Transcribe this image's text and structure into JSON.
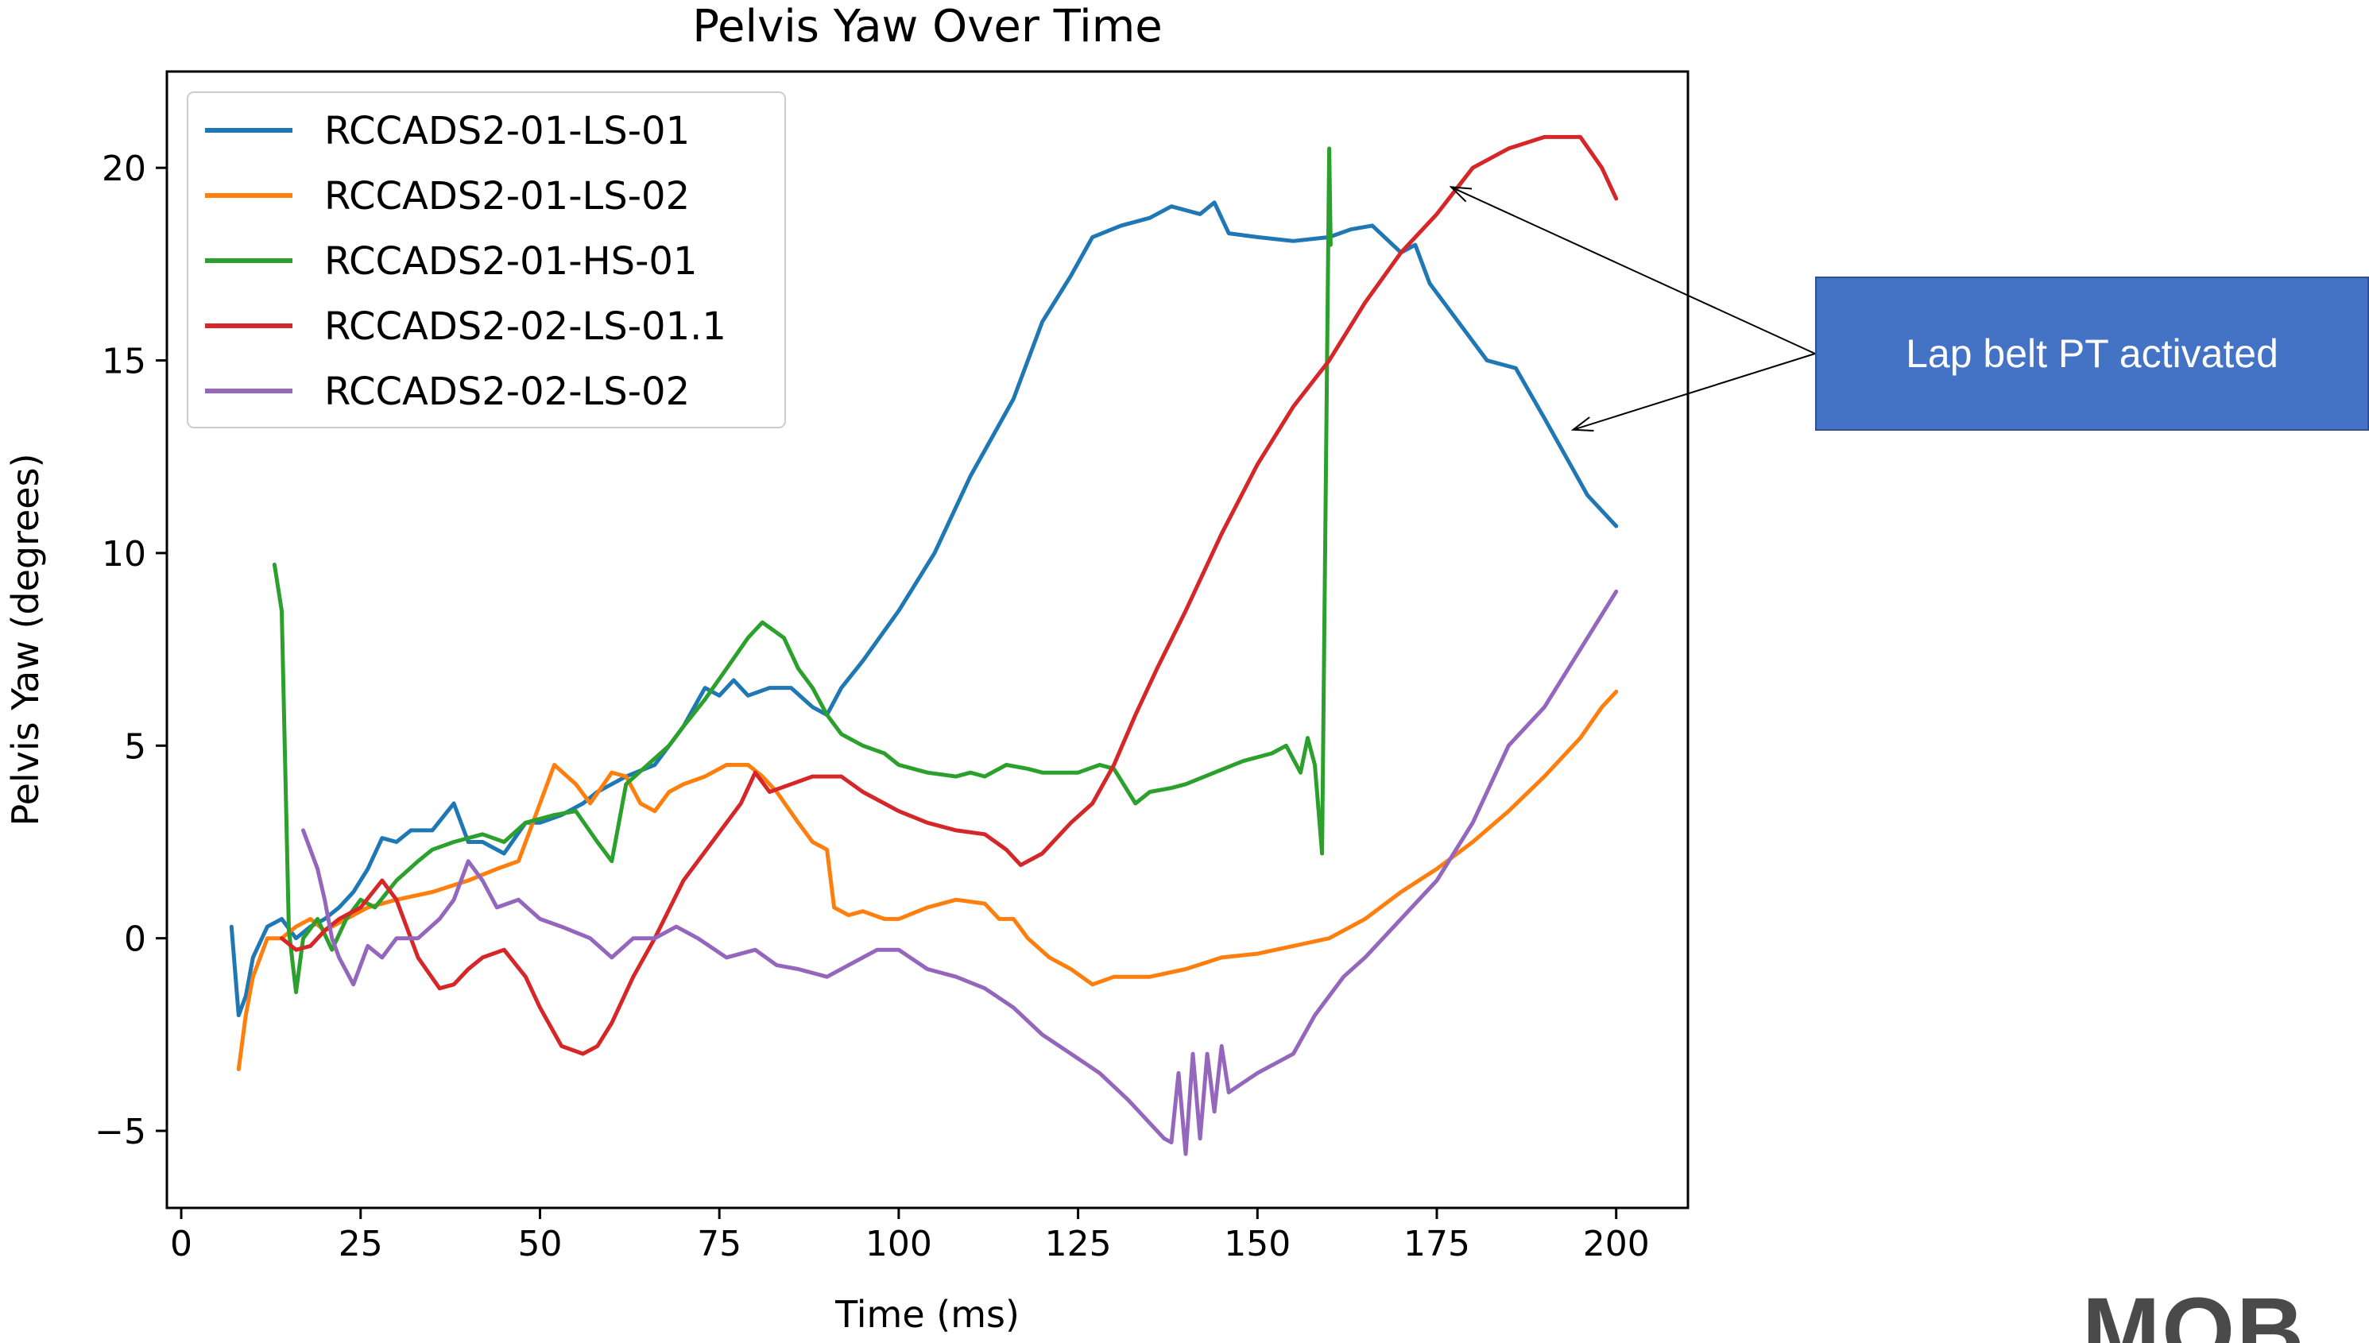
{
  "chart_data": {
    "type": "line",
    "title": "Pelvis Yaw Over Time",
    "xlabel": "Time (ms)",
    "ylabel": "Pelvis Yaw (degrees)",
    "xlim": [
      -2,
      210
    ],
    "ylim": [
      -7,
      22.5
    ],
    "xticks": [
      0,
      25,
      50,
      75,
      100,
      125,
      150,
      175,
      200
    ],
    "yticks": [
      -5,
      0,
      5,
      10,
      15,
      20
    ],
    "ytick_labels": [
      "−5",
      "0",
      "5",
      "10",
      "15",
      "20"
    ],
    "legend_position": "top-left",
    "grid": false,
    "series": [
      {
        "name": "RCCADS2-01-LS-01",
        "color": "#1f77b4",
        "points": [
          [
            7,
            0.3
          ],
          [
            8,
            -2
          ],
          [
            9,
            -1.5
          ],
          [
            10,
            -0.5
          ],
          [
            12,
            0.3
          ],
          [
            14,
            0.5
          ],
          [
            16,
            0
          ],
          [
            18,
            0.3
          ],
          [
            20,
            0.5
          ],
          [
            22,
            0.8
          ],
          [
            24,
            1.2
          ],
          [
            26,
            1.8
          ],
          [
            28,
            2.6
          ],
          [
            30,
            2.5
          ],
          [
            32,
            2.8
          ],
          [
            35,
            2.8
          ],
          [
            38,
            3.5
          ],
          [
            40,
            2.5
          ],
          [
            42,
            2.5
          ],
          [
            45,
            2.2
          ],
          [
            48,
            3
          ],
          [
            50,
            3
          ],
          [
            53,
            3.2
          ],
          [
            56,
            3.5
          ],
          [
            58,
            3.8
          ],
          [
            62,
            4.2
          ],
          [
            66,
            4.5
          ],
          [
            70,
            5.5
          ],
          [
            73,
            6.5
          ],
          [
            75,
            6.3
          ],
          [
            77,
            6.7
          ],
          [
            79,
            6.3
          ],
          [
            82,
            6.5
          ],
          [
            85,
            6.5
          ],
          [
            88,
            6
          ],
          [
            90,
            5.8
          ],
          [
            92,
            6.5
          ],
          [
            95,
            7.2
          ],
          [
            100,
            8.5
          ],
          [
            105,
            10
          ],
          [
            110,
            12
          ],
          [
            113,
            13
          ],
          [
            116,
            14
          ],
          [
            120,
            16
          ],
          [
            124,
            17.2
          ],
          [
            127,
            18.2
          ],
          [
            131,
            18.5
          ],
          [
            135,
            18.7
          ],
          [
            138,
            19
          ],
          [
            142,
            18.8
          ],
          [
            144,
            19.1
          ],
          [
            146,
            18.3
          ],
          [
            150,
            18.2
          ],
          [
            155,
            18.1
          ],
          [
            160,
            18.2
          ],
          [
            163,
            18.4
          ],
          [
            166,
            18.5
          ],
          [
            170,
            17.8
          ],
          [
            172,
            18
          ],
          [
            174,
            17
          ],
          [
            176,
            16.5
          ],
          [
            178,
            16
          ],
          [
            182,
            15
          ],
          [
            186,
            14.8
          ],
          [
            190,
            13.5
          ],
          [
            193,
            12.5
          ],
          [
            196,
            11.5
          ],
          [
            200,
            10.7
          ]
        ]
      },
      {
        "name": "RCCADS2-01-LS-02",
        "color": "#ff7f0e",
        "points": [
          [
            8,
            -3.4
          ],
          [
            9,
            -2
          ],
          [
            10,
            -1
          ],
          [
            11,
            -0.5
          ],
          [
            12,
            0
          ],
          [
            14,
            0
          ],
          [
            16,
            0.3
          ],
          [
            18,
            0.5
          ],
          [
            20,
            0.2
          ],
          [
            23,
            0.5
          ],
          [
            26,
            0.8
          ],
          [
            30,
            1
          ],
          [
            35,
            1.2
          ],
          [
            40,
            1.5
          ],
          [
            44,
            1.8
          ],
          [
            47,
            2
          ],
          [
            50,
            3.5
          ],
          [
            52,
            4.5
          ],
          [
            55,
            4
          ],
          [
            57,
            3.5
          ],
          [
            60,
            4.3
          ],
          [
            62,
            4.2
          ],
          [
            64,
            3.5
          ],
          [
            66,
            3.3
          ],
          [
            68,
            3.8
          ],
          [
            70,
            4
          ],
          [
            73,
            4.2
          ],
          [
            76,
            4.5
          ],
          [
            79,
            4.5
          ],
          [
            81,
            4.2
          ],
          [
            83,
            3.8
          ],
          [
            86,
            3
          ],
          [
            88,
            2.5
          ],
          [
            90,
            2.3
          ],
          [
            91,
            0.8
          ],
          [
            93,
            0.6
          ],
          [
            95,
            0.7
          ],
          [
            98,
            0.5
          ],
          [
            100,
            0.5
          ],
          [
            104,
            0.8
          ],
          [
            108,
            1
          ],
          [
            112,
            0.9
          ],
          [
            114,
            0.5
          ],
          [
            116,
            0.5
          ],
          [
            118,
            0
          ],
          [
            121,
            -0.5
          ],
          [
            124,
            -0.8
          ],
          [
            127,
            -1.2
          ],
          [
            130,
            -1
          ],
          [
            135,
            -1
          ],
          [
            140,
            -0.8
          ],
          [
            145,
            -0.5
          ],
          [
            150,
            -0.4
          ],
          [
            155,
            -0.2
          ],
          [
            160,
            0
          ],
          [
            165,
            0.5
          ],
          [
            170,
            1.2
          ],
          [
            175,
            1.8
          ],
          [
            180,
            2.5
          ],
          [
            185,
            3.3
          ],
          [
            190,
            4.2
          ],
          [
            195,
            5.2
          ],
          [
            198,
            6
          ],
          [
            200,
            6.4
          ]
        ]
      },
      {
        "name": "RCCADS2-01-HS-01",
        "color": "#2ca02c",
        "points": [
          [
            13,
            9.7
          ],
          [
            14,
            8.5
          ],
          [
            15,
            0.2
          ],
          [
            16,
            -1.4
          ],
          [
            17,
            0
          ],
          [
            19,
            0.5
          ],
          [
            21,
            -0.3
          ],
          [
            23,
            0.5
          ],
          [
            25,
            1
          ],
          [
            27,
            0.8
          ],
          [
            30,
            1.5
          ],
          [
            33,
            2
          ],
          [
            35,
            2.3
          ],
          [
            38,
            2.5
          ],
          [
            42,
            2.7
          ],
          [
            45,
            2.5
          ],
          [
            48,
            3
          ],
          [
            52,
            3.2
          ],
          [
            55,
            3.3
          ],
          [
            58,
            2.5
          ],
          [
            60,
            2
          ],
          [
            62,
            4
          ],
          [
            65,
            4.5
          ],
          [
            68,
            5
          ],
          [
            70,
            5.5
          ],
          [
            73,
            6.2
          ],
          [
            76,
            7
          ],
          [
            79,
            7.8
          ],
          [
            81,
            8.2
          ],
          [
            84,
            7.8
          ],
          [
            86,
            7
          ],
          [
            88,
            6.5
          ],
          [
            90,
            5.8
          ],
          [
            92,
            5.3
          ],
          [
            95,
            5
          ],
          [
            98,
            4.8
          ],
          [
            100,
            4.5
          ],
          [
            104,
            4.3
          ],
          [
            108,
            4.2
          ],
          [
            110,
            4.3
          ],
          [
            112,
            4.2
          ],
          [
            115,
            4.5
          ],
          [
            118,
            4.4
          ],
          [
            120,
            4.3
          ],
          [
            125,
            4.3
          ],
          [
            128,
            4.5
          ],
          [
            130,
            4.4
          ],
          [
            133,
            3.5
          ],
          [
            135,
            3.8
          ],
          [
            138,
            3.9
          ],
          [
            140,
            4
          ],
          [
            144,
            4.3
          ],
          [
            148,
            4.6
          ],
          [
            152,
            4.8
          ],
          [
            154,
            5
          ],
          [
            156,
            4.3
          ],
          [
            157,
            5.2
          ],
          [
            158,
            4.5
          ],
          [
            159,
            2.2
          ],
          [
            160,
            20.5
          ],
          [
            160.2,
            18
          ]
        ]
      },
      {
        "name": "RCCADS2-02-LS-01.1",
        "color": "#d62728",
        "points": [
          [
            14,
            0
          ],
          [
            16,
            -0.3
          ],
          [
            18,
            -0.2
          ],
          [
            20,
            0.2
          ],
          [
            22,
            0.5
          ],
          [
            25,
            0.8
          ],
          [
            28,
            1.5
          ],
          [
            30,
            1
          ],
          [
            33,
            -0.5
          ],
          [
            36,
            -1.3
          ],
          [
            38,
            -1.2
          ],
          [
            40,
            -0.8
          ],
          [
            42,
            -0.5
          ],
          [
            45,
            -0.3
          ],
          [
            48,
            -1
          ],
          [
            50,
            -1.8
          ],
          [
            53,
            -2.8
          ],
          [
            56,
            -3
          ],
          [
            58,
            -2.8
          ],
          [
            60,
            -2.2
          ],
          [
            63,
            -1
          ],
          [
            66,
            0
          ],
          [
            70,
            1.5
          ],
          [
            74,
            2.5
          ],
          [
            78,
            3.5
          ],
          [
            80,
            4.3
          ],
          [
            82,
            3.8
          ],
          [
            85,
            4
          ],
          [
            88,
            4.2
          ],
          [
            92,
            4.2
          ],
          [
            95,
            3.8
          ],
          [
            98,
            3.5
          ],
          [
            100,
            3.3
          ],
          [
            104,
            3
          ],
          [
            108,
            2.8
          ],
          [
            112,
            2.7
          ],
          [
            115,
            2.3
          ],
          [
            117,
            1.9
          ],
          [
            120,
            2.2
          ],
          [
            124,
            3
          ],
          [
            127,
            3.5
          ],
          [
            130,
            4.5
          ],
          [
            133,
            5.8
          ],
          [
            136,
            7
          ],
          [
            140,
            8.5
          ],
          [
            145,
            10.5
          ],
          [
            150,
            12.3
          ],
          [
            155,
            13.8
          ],
          [
            160,
            15
          ],
          [
            165,
            16.5
          ],
          [
            170,
            17.8
          ],
          [
            175,
            18.8
          ],
          [
            180,
            20
          ],
          [
            185,
            20.5
          ],
          [
            190,
            20.8
          ],
          [
            195,
            20.8
          ],
          [
            198,
            20
          ],
          [
            200,
            19.2
          ]
        ]
      },
      {
        "name": "RCCADS2-02-LS-02",
        "color": "#9467bd",
        "points": [
          [
            17,
            2.8
          ],
          [
            19,
            1.8
          ],
          [
            20,
            1
          ],
          [
            21,
            0
          ],
          [
            22,
            -0.5
          ],
          [
            24,
            -1.2
          ],
          [
            26,
            -0.2
          ],
          [
            28,
            -0.5
          ],
          [
            30,
            0
          ],
          [
            33,
            0
          ],
          [
            36,
            0.5
          ],
          [
            38,
            1
          ],
          [
            40,
            2
          ],
          [
            42,
            1.5
          ],
          [
            44,
            0.8
          ],
          [
            47,
            1
          ],
          [
            50,
            0.5
          ],
          [
            53,
            0.3
          ],
          [
            57,
            0
          ],
          [
            60,
            -0.5
          ],
          [
            63,
            0
          ],
          [
            66,
            0
          ],
          [
            69,
            0.3
          ],
          [
            72,
            0
          ],
          [
            76,
            -0.5
          ],
          [
            80,
            -0.3
          ],
          [
            83,
            -0.7
          ],
          [
            86,
            -0.8
          ],
          [
            90,
            -1
          ],
          [
            93,
            -0.7
          ],
          [
            97,
            -0.3
          ],
          [
            100,
            -0.3
          ],
          [
            104,
            -0.8
          ],
          [
            108,
            -1
          ],
          [
            112,
            -1.3
          ],
          [
            116,
            -1.8
          ],
          [
            120,
            -2.5
          ],
          [
            124,
            -3
          ],
          [
            128,
            -3.5
          ],
          [
            132,
            -4.2
          ],
          [
            135,
            -4.8
          ],
          [
            137,
            -5.2
          ],
          [
            138,
            -5.3
          ],
          [
            139,
            -3.5
          ],
          [
            140,
            -5.6
          ],
          [
            141,
            -3
          ],
          [
            142,
            -5.2
          ],
          [
            143,
            -3
          ],
          [
            144,
            -4.5
          ],
          [
            145,
            -2.8
          ],
          [
            146,
            -4
          ],
          [
            150,
            -3.5
          ],
          [
            155,
            -3
          ],
          [
            158,
            -2
          ],
          [
            162,
            -1
          ],
          [
            165,
            -0.5
          ],
          [
            170,
            0.5
          ],
          [
            175,
            1.5
          ],
          [
            180,
            3
          ],
          [
            185,
            5
          ],
          [
            190,
            6
          ],
          [
            195,
            7.5
          ],
          [
            200,
            9
          ]
        ]
      }
    ]
  },
  "annotation": {
    "text": "Lap belt PT activated",
    "targets": [
      [
        177,
        19.5
      ],
      [
        194,
        13.2
      ]
    ]
  },
  "logo": {
    "text": "MOB"
  }
}
